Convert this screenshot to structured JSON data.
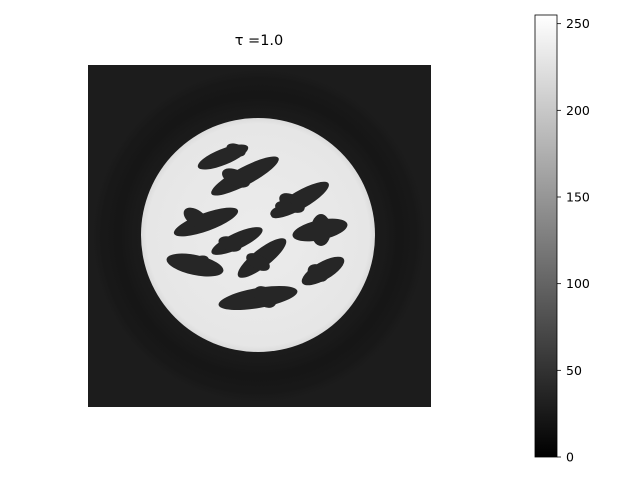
{
  "chart_data": {
    "type": "heatmap",
    "title": "τ =1.0",
    "image": {
      "description_semantic": "reconstructed CT-style phantom",
      "background_value": 28,
      "halo_ring_value": 22,
      "disk_value": 232,
      "blob_value": 38,
      "blob_count": 11
    },
    "colorbar": {
      "colormap": "gray",
      "range": [
        0,
        255
      ],
      "ticks": [
        0,
        50,
        100,
        150,
        200,
        250
      ],
      "tick_labels": [
        "0",
        "50",
        "100",
        "150",
        "200",
        "250"
      ]
    },
    "axes_visible": false
  }
}
